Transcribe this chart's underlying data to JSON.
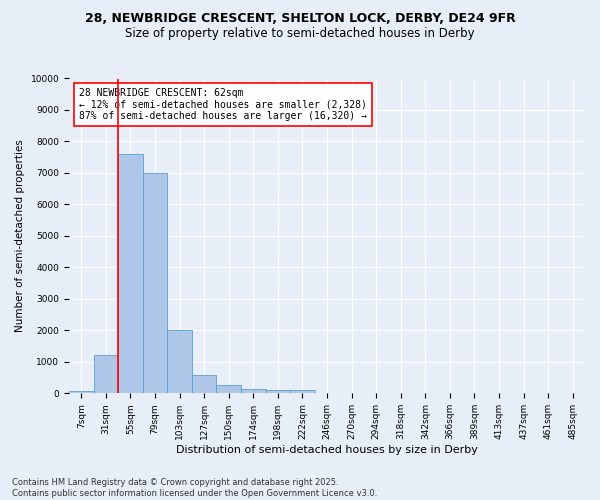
{
  "title1": "28, NEWBRIDGE CRESCENT, SHELTON LOCK, DERBY, DE24 9FR",
  "title2": "Size of property relative to semi-detached houses in Derby",
  "xlabel": "Distribution of semi-detached houses by size in Derby",
  "ylabel": "Number of semi-detached properties",
  "categories": [
    "7sqm",
    "31sqm",
    "55sqm",
    "79sqm",
    "103sqm",
    "127sqm",
    "150sqm",
    "174sqm",
    "198sqm",
    "222sqm",
    "246sqm",
    "270sqm",
    "294sqm",
    "318sqm",
    "342sqm",
    "366sqm",
    "389sqm",
    "413sqm",
    "437sqm",
    "461sqm",
    "485sqm"
  ],
  "values": [
    80,
    1220,
    7600,
    7000,
    2000,
    580,
    260,
    130,
    110,
    110,
    0,
    0,
    0,
    0,
    0,
    0,
    0,
    0,
    0,
    0,
    0
  ],
  "bar_color": "#aec6e8",
  "bar_edge_color": "#5a9fd4",
  "vline_index": 2,
  "vline_color": "red",
  "annotation_text": "28 NEWBRIDGE CRESCENT: 62sqm\n← 12% of semi-detached houses are smaller (2,328)\n87% of semi-detached houses are larger (16,320) →",
  "annotation_box_color": "white",
  "annotation_box_edge": "red",
  "ylim": [
    0,
    10000
  ],
  "yticks": [
    0,
    1000,
    2000,
    3000,
    4000,
    5000,
    6000,
    7000,
    8000,
    9000,
    10000
  ],
  "bg_color": "#e8eef7",
  "plot_bg_color": "#e8eef7",
  "grid_color": "white",
  "footer_line1": "Contains HM Land Registry data © Crown copyright and database right 2025.",
  "footer_line2": "Contains public sector information licensed under the Open Government Licence v3.0.",
  "title1_fontsize": 9,
  "title2_fontsize": 8.5,
  "xlabel_fontsize": 8,
  "ylabel_fontsize": 7.5,
  "tick_fontsize": 6.5,
  "annotation_fontsize": 7,
  "footer_fontsize": 6
}
